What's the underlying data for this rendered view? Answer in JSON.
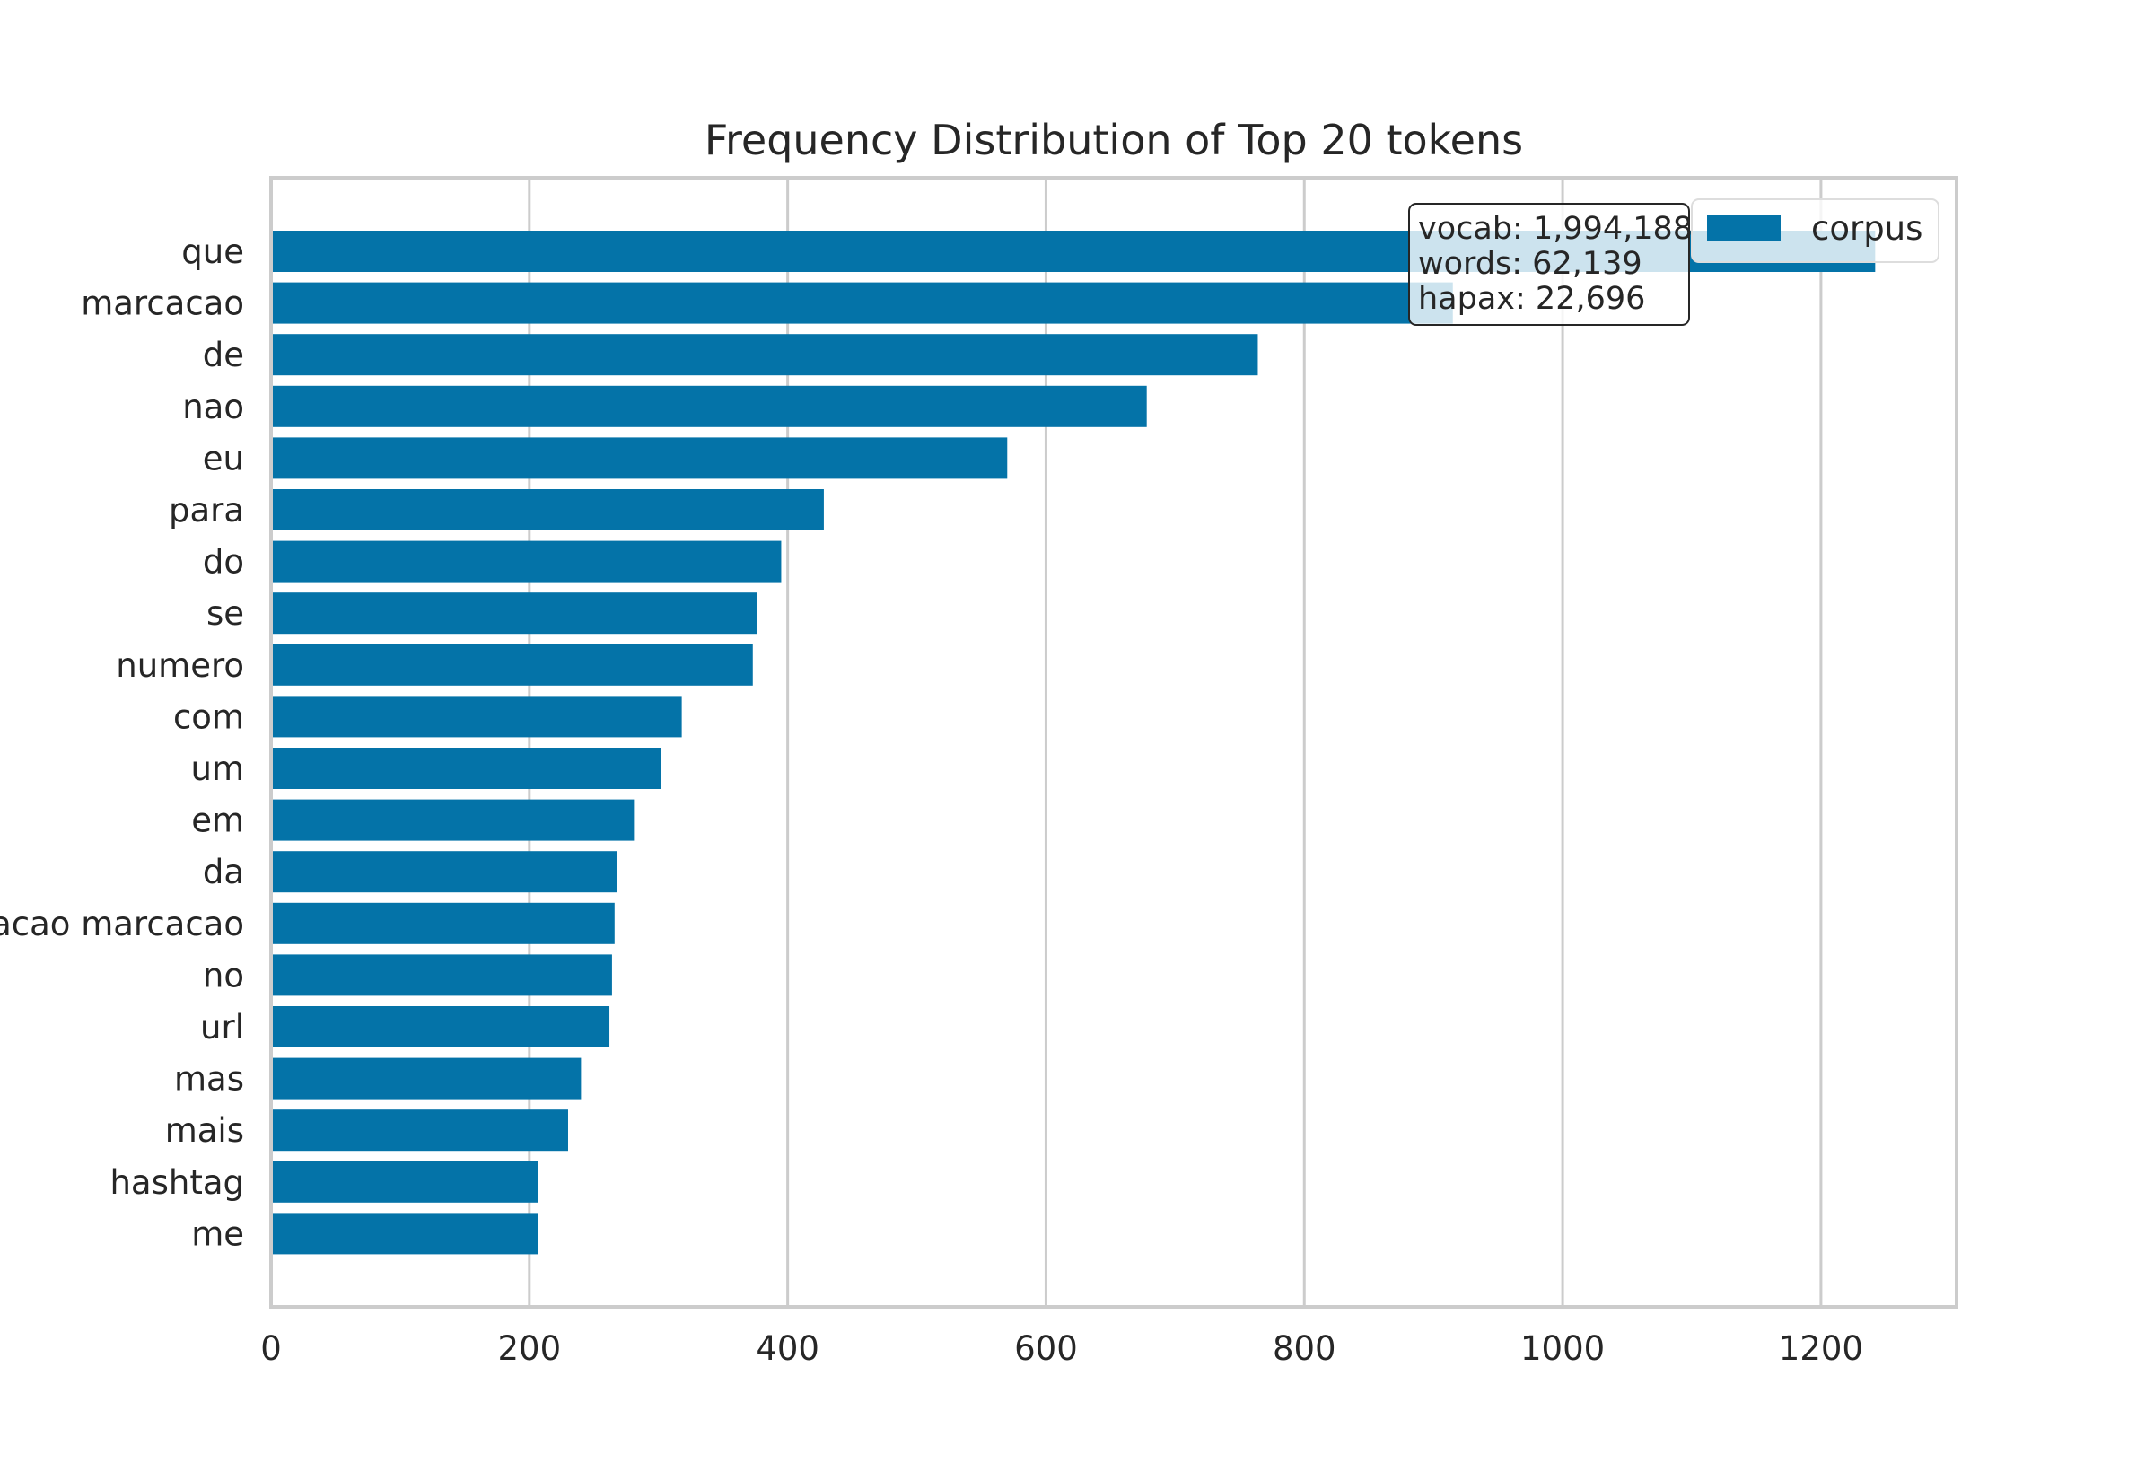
{
  "chart_data": {
    "type": "bar",
    "orientation": "horizontal",
    "title": "Frequency Distribution of Top 20 tokens",
    "xlabel": "",
    "ylabel": "",
    "xlim": [
      0,
      1305
    ],
    "xticks": [
      0,
      200,
      400,
      600,
      800,
      1000,
      1200
    ],
    "grid": true,
    "categories": [
      "que",
      "marcacao",
      "de",
      "nao",
      "eu",
      "para",
      "do",
      "se",
      "numero",
      "com",
      "um",
      "em",
      "da",
      "marcacao marcacao",
      "no",
      "url",
      "mas",
      "mais",
      "hashtag",
      "me"
    ],
    "series": [
      {
        "name": "corpus",
        "color": "#0473a8",
        "values": [
          1242,
          915,
          764,
          678,
          570,
          428,
          395,
          376,
          373,
          318,
          302,
          281,
          268,
          266,
          264,
          262,
          240,
          230,
          207,
          207
        ]
      }
    ],
    "legend": {
      "position": "top-right",
      "entries": [
        "corpus"
      ]
    },
    "annotation": {
      "lines": [
        "vocab: 1,994,188",
        "words: 62,139",
        "hapax: 22,696"
      ]
    }
  }
}
